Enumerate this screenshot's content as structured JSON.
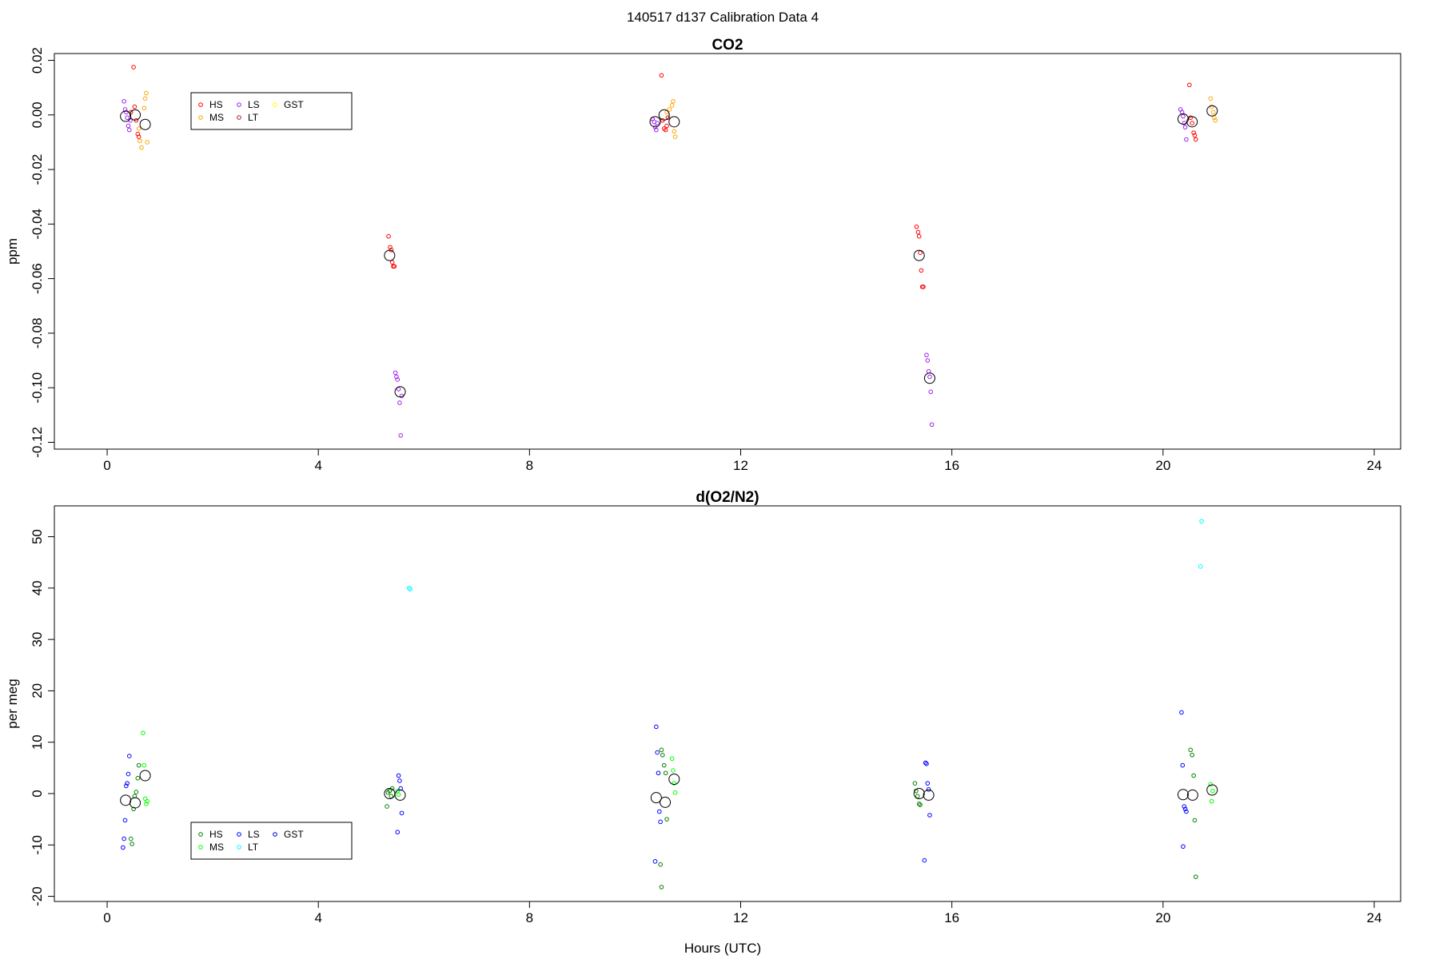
{
  "page_title": "140517   d137   Calibration Data 4",
  "x_axis_label": "Hours (UTC)",
  "colors": {
    "HS_co2": "#ff0000",
    "MS_co2": "#ffa500",
    "LS_co2": "#a020f0",
    "LT_co2": "#b22222",
    "GST_co2": "#ffff00",
    "HS_o2": "#008000",
    "MS_o2": "#00ff00",
    "LS_o2": "#0000ff",
    "LT_o2": "#00ffff",
    "GST_o2": "#0000cd",
    "mean_marker": "#000000"
  },
  "chart_data": [
    {
      "type": "scatter",
      "title": "CO2",
      "ylabel": "ppm",
      "xlim": [
        -1,
        24.5
      ],
      "ylim": [
        -0.1225,
        0.0225
      ],
      "xticks": [
        0,
        4,
        8,
        12,
        16,
        20,
        24
      ],
      "xtick_labels": [
        "0",
        "4",
        "8",
        "12",
        "16",
        "20",
        "24"
      ],
      "yticks": [
        0.02,
        0.0,
        -0.02,
        -0.04,
        -0.06,
        -0.08,
        -0.1,
        -0.12
      ],
      "ytick_labels": [
        "0.02",
        "0.00",
        "-0.02",
        "-0.04",
        "-0.06",
        "-0.08",
        "-0.10",
        "-0.12"
      ],
      "legend": {
        "placement": "top-left",
        "items": [
          {
            "label": "HS",
            "color": "#ff0000"
          },
          {
            "label": "MS",
            "color": "#ffa500"
          },
          {
            "label": "LS",
            "color": "#a020f0"
          },
          {
            "label": "LT",
            "color": "#b22222"
          },
          {
            "label": "GST",
            "color": "#ffff00"
          }
        ]
      },
      "series": [
        {
          "name": "HS",
          "color": "#ff0000",
          "points": [
            [
              0.5,
              0.0175
            ],
            [
              0.52,
              0.003
            ],
            [
              0.55,
              -0.002
            ],
            [
              0.58,
              -0.007
            ],
            [
              0.6,
              -0.008
            ],
            [
              0.45,
              0.001
            ],
            [
              5.33,
              -0.0445
            ],
            [
              5.36,
              -0.0485
            ],
            [
              5.38,
              -0.0495
            ],
            [
              5.4,
              -0.054
            ],
            [
              5.42,
              -0.0555
            ],
            [
              5.44,
              -0.0555
            ],
            [
              10.5,
              0.0145
            ],
            [
              10.52,
              -0.002
            ],
            [
              10.55,
              -0.005
            ],
            [
              10.58,
              -0.0055
            ],
            [
              10.6,
              -0.004
            ],
            [
              10.62,
              -0.001
            ],
            [
              15.33,
              -0.041
            ],
            [
              15.36,
              -0.043
            ],
            [
              15.38,
              -0.0445
            ],
            [
              15.4,
              -0.0505
            ],
            [
              15.42,
              -0.057
            ],
            [
              15.44,
              -0.063
            ],
            [
              15.46,
              -0.063
            ],
            [
              20.5,
              0.011
            ],
            [
              20.52,
              -0.001
            ],
            [
              20.55,
              -0.003
            ],
            [
              20.58,
              -0.0065
            ],
            [
              20.6,
              -0.0075
            ],
            [
              20.62,
              -0.009
            ]
          ]
        },
        {
          "name": "MS",
          "color": "#ffa500",
          "points": [
            [
              0.6,
              -0.005
            ],
            [
              0.62,
              -0.0095
            ],
            [
              0.65,
              -0.012
            ],
            [
              0.7,
              0.0025
            ],
            [
              0.72,
              0.006
            ],
            [
              0.74,
              0.008
            ],
            [
              0.76,
              -0.01
            ],
            [
              10.6,
              0.001
            ],
            [
              10.65,
              0.002
            ],
            [
              10.7,
              0.0035
            ],
            [
              10.72,
              0.005
            ],
            [
              10.74,
              -0.006
            ],
            [
              10.76,
              -0.008
            ],
            [
              20.9,
              0.006
            ],
            [
              20.92,
              0.003
            ],
            [
              20.95,
              0.001
            ],
            [
              20.97,
              -0.001
            ],
            [
              20.99,
              -0.002
            ]
          ]
        },
        {
          "name": "LS",
          "color": "#a020f0",
          "points": [
            [
              0.32,
              0.005
            ],
            [
              0.34,
              0.002
            ],
            [
              0.36,
              0.001
            ],
            [
              0.38,
              -0.001
            ],
            [
              0.4,
              -0.004
            ],
            [
              0.42,
              -0.0055
            ],
            [
              0.44,
              -0.002
            ],
            [
              5.46,
              -0.0945
            ],
            [
              5.48,
              -0.096
            ],
            [
              5.5,
              -0.097
            ],
            [
              5.52,
              -0.1005
            ],
            [
              5.54,
              -0.1055
            ],
            [
              5.56,
              -0.1175
            ],
            [
              5.58,
              -0.103
            ],
            [
              10.33,
              -0.0015
            ],
            [
              10.36,
              -0.0025
            ],
            [
              10.38,
              -0.0045
            ],
            [
              10.4,
              -0.0055
            ],
            [
              10.42,
              -0.003
            ],
            [
              15.52,
              -0.088
            ],
            [
              15.54,
              -0.09
            ],
            [
              15.56,
              -0.094
            ],
            [
              15.58,
              -0.096
            ],
            [
              15.6,
              -0.1015
            ],
            [
              15.62,
              -0.1135
            ],
            [
              20.33,
              0.002
            ],
            [
              20.36,
              0.001
            ],
            [
              20.38,
              -0.0005
            ],
            [
              20.4,
              -0.003
            ],
            [
              20.42,
              -0.0045
            ],
            [
              20.44,
              -0.009
            ]
          ]
        }
      ],
      "means": [
        [
          0.35,
          -0.0005
        ],
        [
          0.53,
          0.0
        ],
        [
          0.72,
          -0.0035
        ],
        [
          5.35,
          -0.0515
        ],
        [
          5.55,
          -0.1015
        ],
        [
          10.38,
          -0.0025
        ],
        [
          10.55,
          0.0
        ],
        [
          10.74,
          -0.0025
        ],
        [
          15.38,
          -0.0515
        ],
        [
          15.58,
          -0.0965
        ],
        [
          20.38,
          -0.0015
        ],
        [
          20.55,
          -0.0025
        ],
        [
          20.93,
          0.0015
        ]
      ]
    },
    {
      "type": "scatter",
      "title": "d(O2/N2)",
      "ylabel": "per meg",
      "xlim": [
        -1,
        24.5
      ],
      "ylim": [
        -21,
        56
      ],
      "xticks": [
        0,
        4,
        8,
        12,
        16,
        20,
        24
      ],
      "xtick_labels": [
        "0",
        "4",
        "8",
        "12",
        "16",
        "20",
        "24"
      ],
      "yticks": [
        50,
        40,
        30,
        20,
        10,
        0,
        -10,
        -20
      ],
      "ytick_labels": [
        "50",
        "40",
        "30",
        "20",
        "10",
        "0",
        "-10",
        "-20"
      ],
      "legend": {
        "placement": "bottom-left",
        "items": [
          {
            "label": "HS",
            "color": "#008000"
          },
          {
            "label": "MS",
            "color": "#00ff00"
          },
          {
            "label": "LS",
            "color": "#0000ff"
          },
          {
            "label": "LT",
            "color": "#00ffff"
          },
          {
            "label": "GST",
            "color": "#0000cd"
          }
        ]
      },
      "series": [
        {
          "name": "HS",
          "color": "#008000",
          "points": [
            [
              0.45,
              -8.8
            ],
            [
              0.47,
              -9.8
            ],
            [
              0.5,
              -3.0
            ],
            [
              0.52,
              -0.5
            ],
            [
              0.55,
              0.3
            ],
            [
              0.58,
              3.0
            ],
            [
              0.6,
              5.5
            ],
            [
              5.3,
              -2.5
            ],
            [
              5.32,
              0.2
            ],
            [
              5.35,
              0.5
            ],
            [
              5.38,
              -0.5
            ],
            [
              5.4,
              1.0
            ],
            [
              10.5,
              8.5
            ],
            [
              10.52,
              7.5
            ],
            [
              10.55,
              5.5
            ],
            [
              10.58,
              4.0
            ],
            [
              10.6,
              -5.0
            ],
            [
              10.48,
              -13.8
            ],
            [
              10.5,
              -18.2
            ],
            [
              15.3,
              2.0
            ],
            [
              15.32,
              0.5
            ],
            [
              15.35,
              -0.5
            ],
            [
              15.38,
              -2.0
            ],
            [
              15.4,
              -2.2
            ],
            [
              20.52,
              8.5
            ],
            [
              20.55,
              7.5
            ],
            [
              20.58,
              3.5
            ],
            [
              20.6,
              -5.2
            ],
            [
              20.62,
              -16.2
            ]
          ]
        },
        {
          "name": "MS",
          "color": "#00ff00",
          "points": [
            [
              0.68,
              11.8
            ],
            [
              0.7,
              5.5
            ],
            [
              0.72,
              -1.0
            ],
            [
              0.74,
              -2.0
            ],
            [
              0.76,
              -1.5
            ],
            [
              5.5,
              0.5
            ],
            [
              5.52,
              -0.2
            ],
            [
              10.7,
              6.8
            ],
            [
              10.72,
              4.5
            ],
            [
              10.74,
              2.0
            ],
            [
              10.76,
              0.2
            ],
            [
              20.9,
              1.8
            ],
            [
              20.92,
              -1.5
            ],
            [
              20.94,
              0.5
            ]
          ]
        },
        {
          "name": "LS",
          "color": "#0000ff",
          "points": [
            [
              0.3,
              -10.5
            ],
            [
              0.32,
              -8.8
            ],
            [
              0.34,
              -5.2
            ],
            [
              0.36,
              1.5
            ],
            [
              0.38,
              2.0
            ],
            [
              0.4,
              3.8
            ],
            [
              0.42,
              7.3
            ],
            [
              5.52,
              3.5
            ],
            [
              5.54,
              2.5
            ],
            [
              5.56,
              1.0
            ],
            [
              5.58,
              -3.8
            ],
            [
              5.5,
              -7.5
            ],
            [
              10.4,
              13.0
            ],
            [
              10.42,
              8.0
            ],
            [
              10.44,
              4.0
            ],
            [
              10.46,
              -3.5
            ],
            [
              10.48,
              -5.5
            ],
            [
              10.38,
              -13.2
            ],
            [
              15.5,
              6.0
            ],
            [
              15.52,
              5.8
            ],
            [
              15.54,
              2.0
            ],
            [
              15.56,
              0.8
            ],
            [
              15.58,
              -4.2
            ],
            [
              15.48,
              -13.0
            ],
            [
              20.35,
              15.8
            ],
            [
              20.37,
              5.5
            ],
            [
              20.4,
              -2.5
            ],
            [
              20.42,
              -3.0
            ],
            [
              20.44,
              -3.5
            ],
            [
              20.38,
              -10.3
            ]
          ]
        },
        {
          "name": "LT",
          "color": "#00ffff",
          "points": [
            [
              5.72,
              40.0
            ],
            [
              5.74,
              39.8
            ],
            [
              20.73,
              53.0
            ],
            [
              20.71,
              44.2
            ]
          ]
        }
      ],
      "means": [
        [
          0.35,
          -1.3
        ],
        [
          0.53,
          -1.8
        ],
        [
          0.72,
          3.5
        ],
        [
          5.35,
          0.0
        ],
        [
          5.55,
          -0.3
        ],
        [
          10.4,
          -0.8
        ],
        [
          10.57,
          -1.7
        ],
        [
          10.74,
          2.8
        ],
        [
          15.38,
          0.0
        ],
        [
          15.56,
          -0.3
        ],
        [
          20.38,
          -0.2
        ],
        [
          20.56,
          -0.3
        ],
        [
          20.93,
          0.7
        ]
      ]
    }
  ]
}
